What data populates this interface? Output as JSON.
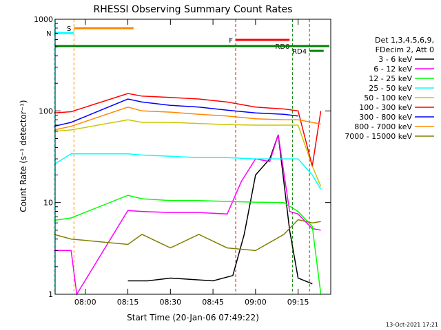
{
  "chart_data": {
    "type": "line",
    "title": "RHESSI Observing Summary Count Rates",
    "xlabel": "Start Time (20-Jan-06 07:49:22)",
    "ylabel": "Count Rate (s⁻¹ detector⁻¹)",
    "y_scale": "log",
    "ylim": [
      1,
      1000
    ],
    "xlim": [
      "07:49:22",
      "09:26:30"
    ],
    "x_ticks": [
      "08:00",
      "08:15",
      "08:30",
      "08:45",
      "09:00",
      "09:15"
    ],
    "y_ticks": [
      "1",
      "10",
      "100",
      "1000"
    ],
    "legend": {
      "position": "right",
      "header": [
        "Det 1,3,4,5,6,9,",
        "FDecim 2, Att 0"
      ]
    },
    "series": [
      {
        "name": "3 - 6 keV",
        "color": "#000000",
        "x": [
          "07:49",
          "07:55",
          "08:15",
          "08:22",
          "08:30",
          "08:45",
          "08:52",
          "08:56",
          "09:00",
          "09:05",
          "09:08",
          "09:12",
          "09:15",
          "09:20"
        ],
        "values": [
          null,
          null,
          1.4,
          1.4,
          1.5,
          1.4,
          1.6,
          4.5,
          20,
          30,
          55,
          5,
          1.5,
          1.3
        ]
      },
      {
        "name": "6 - 12 keV",
        "color": "#ff00ff",
        "x": [
          "07:49",
          "07:55",
          "07:57",
          "08:15",
          "08:20",
          "08:30",
          "08:40",
          "08:50",
          "08:55",
          "09:00",
          "09:05",
          "09:08",
          "09:12",
          "09:15",
          "09:20",
          "09:23"
        ],
        "values": [
          3.0,
          3.0,
          1.0,
          8.2,
          8.0,
          7.8,
          7.8,
          7.5,
          17,
          30,
          28,
          55,
          8,
          7.5,
          5.2,
          5.0
        ]
      },
      {
        "name": "12 - 25 keV",
        "color": "#00ff00",
        "x": [
          "07:49",
          "07:55",
          "08:15",
          "08:20",
          "08:30",
          "08:40",
          "08:50",
          "09:00",
          "09:10",
          "09:15",
          "09:20",
          "09:23"
        ],
        "values": [
          6.4,
          6.8,
          12,
          11,
          10.5,
          10.5,
          10.3,
          10.1,
          10,
          8,
          5.5,
          1.0
        ]
      },
      {
        "name": "25 - 50 keV",
        "color": "#00ffff",
        "x": [
          "07:49",
          "07:55",
          "08:15",
          "08:20",
          "08:30",
          "08:40",
          "08:50",
          "09:00",
          "09:10",
          "09:15",
          "09:20",
          "09:23"
        ],
        "values": [
          26,
          34,
          34,
          33,
          32,
          31,
          31,
          30,
          30,
          30,
          20,
          14
        ]
      },
      {
        "name": "50 - 100 keV",
        "color": "#c8c800",
        "x": [
          "07:49",
          "07:55",
          "08:15",
          "08:20",
          "08:30",
          "08:40",
          "08:50",
          "09:00",
          "09:10",
          "09:15",
          "09:20",
          "09:23"
        ],
        "values": [
          60,
          62,
          80,
          75,
          75,
          73,
          71,
          70,
          70,
          70,
          25,
          15
        ]
      },
      {
        "name": "100 - 300 keV",
        "color": "#ff0000",
        "x": [
          "07:49",
          "07:55",
          "08:15",
          "08:20",
          "08:30",
          "08:40",
          "08:50",
          "09:00",
          "09:10",
          "09:15",
          "09:20",
          "09:23"
        ],
        "values": [
          95,
          98,
          155,
          145,
          140,
          135,
          125,
          110,
          105,
          100,
          25,
          100
        ]
      },
      {
        "name": "300 - 800 keV",
        "color": "#0000ff",
        "x": [
          "07:49",
          "07:55",
          "08:15",
          "08:20",
          "08:30",
          "08:40",
          "08:50",
          "09:00",
          "09:10",
          "09:15"
        ],
        "values": [
          68,
          75,
          135,
          125,
          115,
          110,
          102,
          95,
          92,
          88
        ]
      },
      {
        "name": "800 - 7000 keV",
        "color": "#ff8800",
        "x": [
          "07:49",
          "07:55",
          "08:15",
          "08:20",
          "08:30",
          "08:40",
          "08:50",
          "09:00",
          "09:10",
          "09:15",
          "09:20",
          "09:23"
        ],
        "values": [
          62,
          68,
          110,
          100,
          97,
          92,
          88,
          82,
          80,
          80,
          75,
          72
        ]
      },
      {
        "name": "7000 - 15000 keV",
        "color": "#808000",
        "x": [
          "07:49",
          "07:55",
          "08:15",
          "08:20",
          "08:30",
          "08:40",
          "08:50",
          "09:00",
          "09:10",
          "09:15",
          "09:20",
          "09:23"
        ],
        "values": [
          4.5,
          4.0,
          3.5,
          4.5,
          3.2,
          4.5,
          3.2,
          3.0,
          4.5,
          6.5,
          6.0,
          6.2
        ]
      }
    ],
    "annotations": [
      {
        "label": "S",
        "color": "#ff8800",
        "x_start": "07:56",
        "x_end": "08:17"
      },
      {
        "label": "N",
        "color": "#00ffff",
        "x_start": "07:49",
        "x_end": "07:56"
      },
      {
        "label": "F",
        "color": "#ff0000",
        "x_start": "08:53",
        "x_end": "09:12"
      },
      {
        "label": "RD0",
        "color": "#008000",
        "x_start": "09:13",
        "x_end": "09:26"
      },
      {
        "label": "RD4",
        "color": "#008000",
        "x_start": "09:19",
        "x_end": "09:24"
      }
    ]
  },
  "footer": {
    "timestamp": "13-Oct-2021 17:21"
  }
}
